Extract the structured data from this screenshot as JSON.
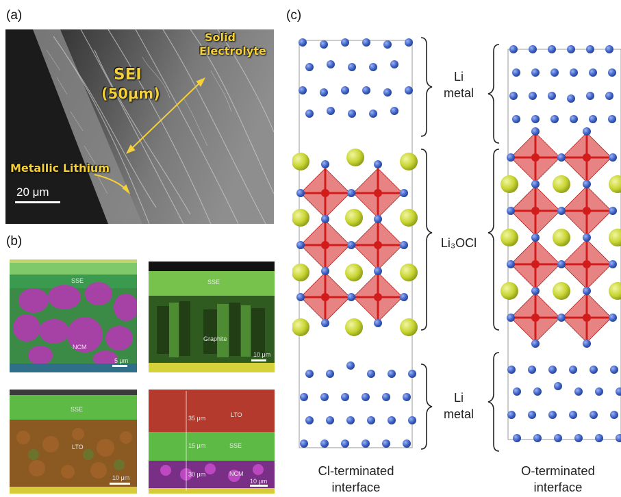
{
  "panels": {
    "a_label": "(a)",
    "b_label": "(b)",
    "c_label": "(c)"
  },
  "panel_a": {
    "sei_line1": "SEI",
    "sei_line2": "(50μm)",
    "electrolyte_line1": "Solid",
    "electrolyte_line2": "Electrolyte",
    "lithium_label": "Metallic Lithium",
    "scale_bar": "20 μm",
    "text_color": "#f4d13a"
  },
  "panel_b": {
    "tl": {
      "sse": "SSE",
      "material": "NCM",
      "scale": "5 μm"
    },
    "tr": {
      "sse": "SSE",
      "material": "Graphite",
      "scale": "10 μm"
    },
    "bl": {
      "sse": "SSE",
      "material": "LTO",
      "scale": "10 μm"
    },
    "br": {
      "lto_thickness": "35 μm",
      "lto": "LTO",
      "sse_thickness": "15 μm",
      "sse": "SSE",
      "ncm_thickness": "30 μm",
      "ncm": "NCM",
      "scale": "10 μm"
    }
  },
  "panel_c": {
    "li_metal_top_1": "Li",
    "li_metal_top_2": "metal",
    "li3ocl": "Li₃OCl",
    "li_metal_bottom_1": "Li",
    "li_metal_bottom_2": "metal",
    "left_caption_1": "Cl-terminated",
    "left_caption_2": "interface",
    "right_caption_1": "O-terminated",
    "right_caption_2": "interface",
    "colors": {
      "li": "#3f63c9",
      "cl": "#c8d432",
      "o": "#d21c1c",
      "octahedron": "#e06060"
    }
  }
}
